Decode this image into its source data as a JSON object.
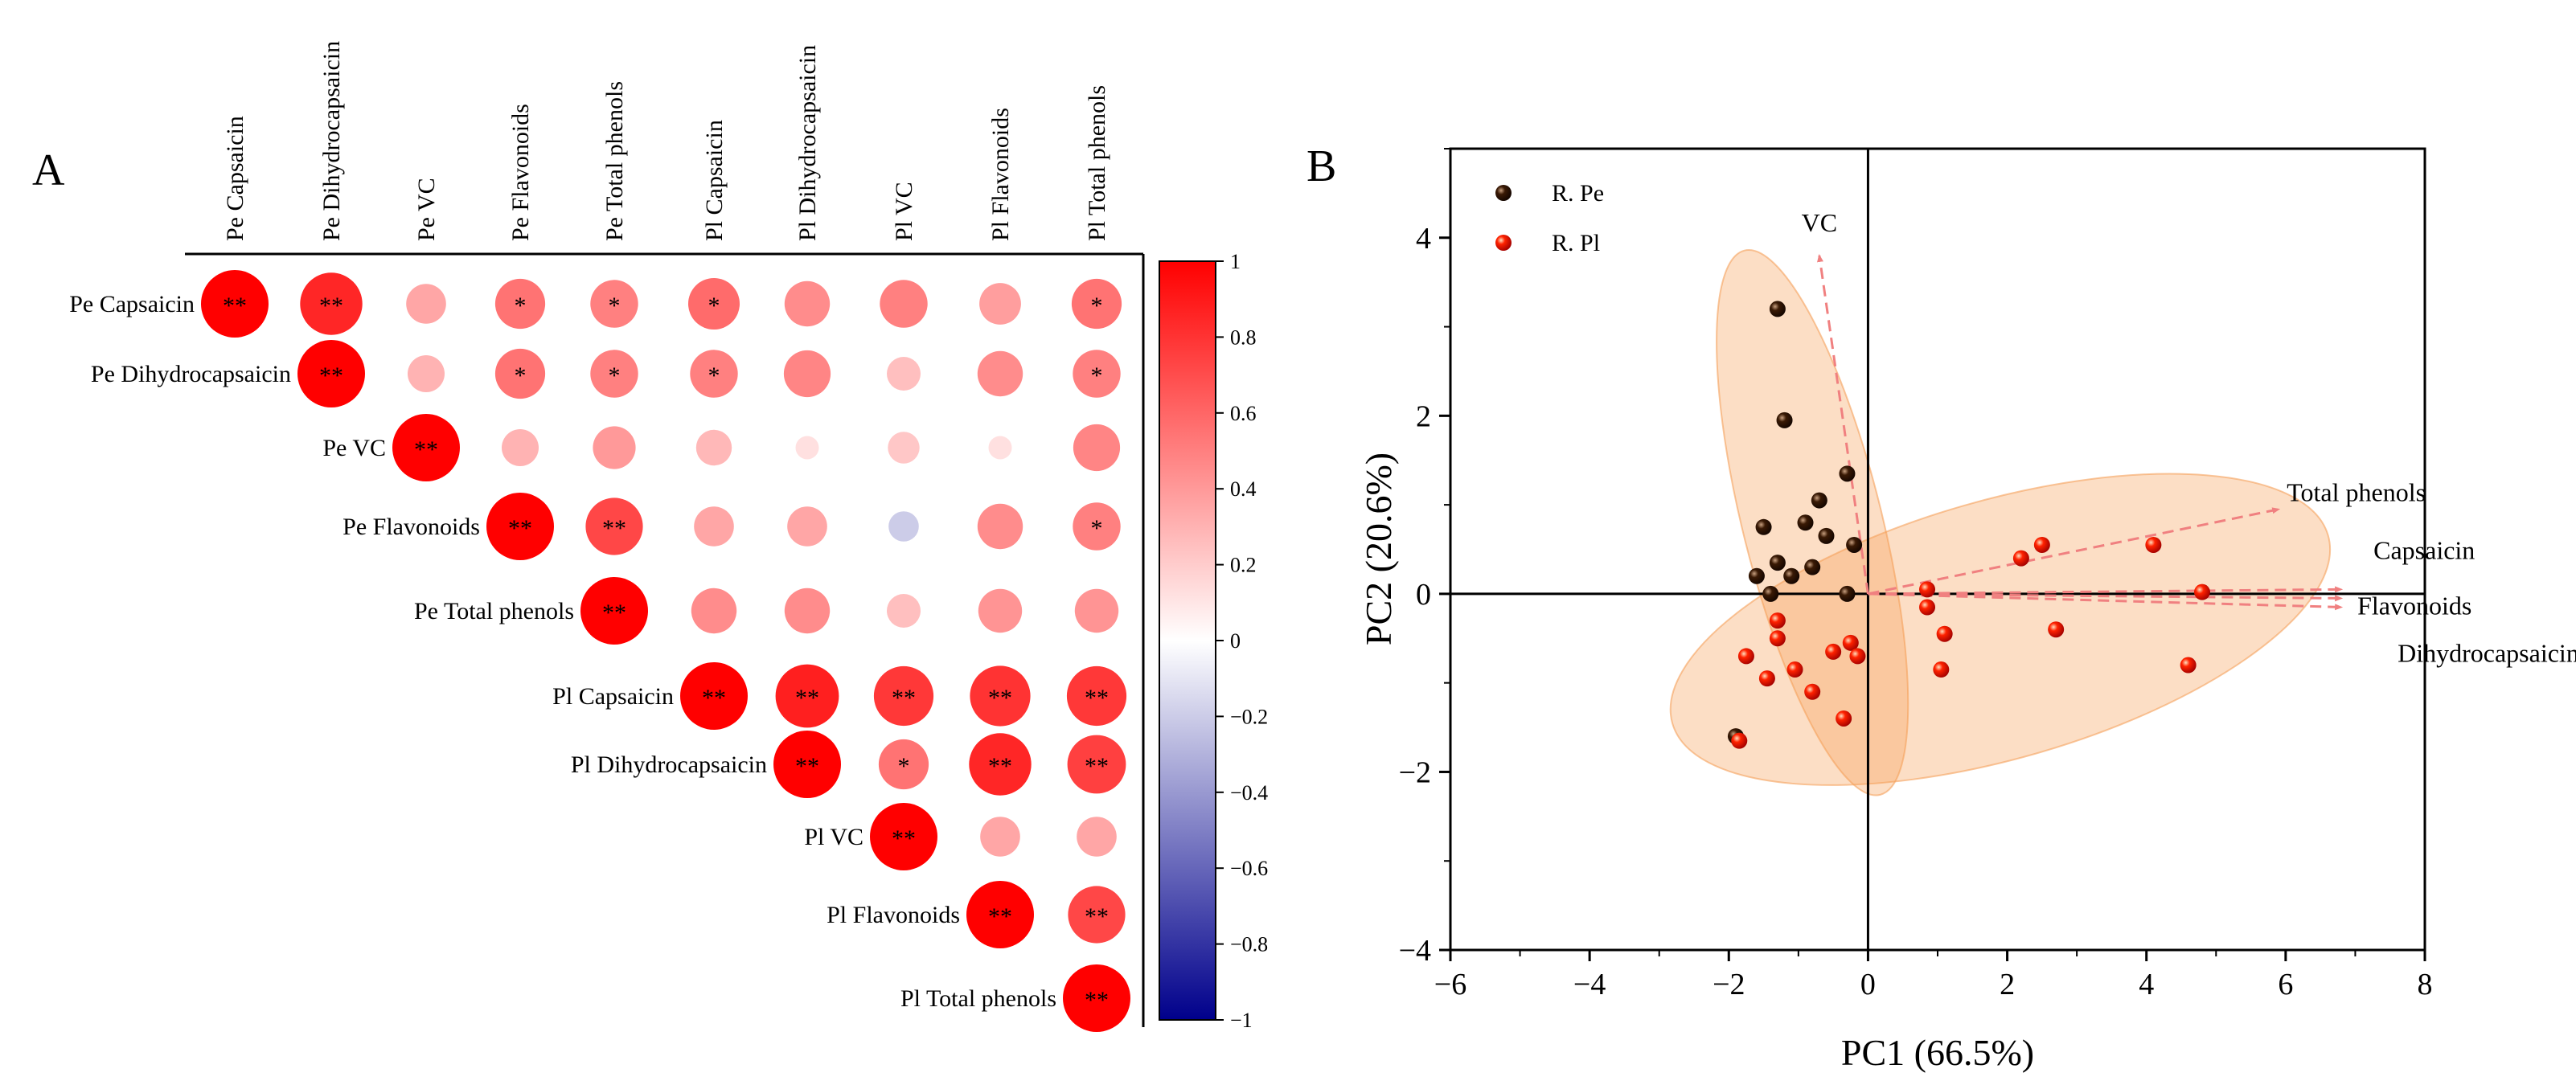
{
  "chart_data": [
    {
      "type": "heatmap",
      "panel_label": "A",
      "variables": [
        "Pe Capsaicin",
        "Pe Dihydrocapsaicin",
        "Pe VC",
        "Pe Flavonoids",
        "Pe Total phenols",
        "Pl Capsaicin",
        "Pl Dihydrocapsaicin",
        "Pl VC",
        "Pl Flavonoids",
        "Pl Total phenols"
      ],
      "matrix": [
        [
          1.0,
          0.85,
          0.35,
          0.55,
          0.5,
          0.58,
          0.45,
          0.5,
          0.38,
          0.55
        ],
        [
          null,
          1.0,
          0.3,
          0.55,
          0.5,
          0.5,
          0.48,
          0.25,
          0.45,
          0.5
        ],
        [
          null,
          null,
          1.0,
          0.3,
          0.4,
          0.28,
          0.12,
          0.22,
          0.12,
          0.48
        ],
        [
          null,
          null,
          null,
          1.0,
          0.72,
          0.35,
          0.35,
          -0.2,
          0.45,
          0.5
        ],
        [
          null,
          null,
          null,
          null,
          1.0,
          0.45,
          0.45,
          0.25,
          0.42,
          0.42
        ],
        [
          null,
          null,
          null,
          null,
          null,
          1.0,
          0.88,
          0.78,
          0.8,
          0.78
        ],
        [
          null,
          null,
          null,
          null,
          null,
          null,
          1.0,
          0.55,
          0.85,
          0.75
        ],
        [
          null,
          null,
          null,
          null,
          null,
          null,
          null,
          1.0,
          0.35,
          0.35
        ],
        [
          null,
          null,
          null,
          null,
          null,
          null,
          null,
          null,
          1.0,
          0.72
        ],
        [
          null,
          null,
          null,
          null,
          null,
          null,
          null,
          null,
          null,
          1.0
        ]
      ],
      "significance": [
        [
          "**",
          "**",
          "",
          "*",
          "*",
          "*",
          "",
          "",
          "",
          "*"
        ],
        [
          "",
          "**",
          "",
          "*",
          "*",
          "*",
          "",
          "",
          "",
          "*"
        ],
        [
          "",
          "",
          "**",
          "",
          "",
          "",
          "",
          "",
          "",
          ""
        ],
        [
          "",
          "",
          "",
          "**",
          "**",
          "",
          "",
          "",
          "",
          "*"
        ],
        [
          "",
          "",
          "",
          "",
          "**",
          "",
          "",
          "",
          "",
          ""
        ],
        [
          "",
          "",
          "",
          "",
          "",
          "**",
          "**",
          "**",
          "**",
          "**"
        ],
        [
          "",
          "",
          "",
          "",
          "",
          "",
          "**",
          "*",
          "**",
          "**"
        ],
        [
          "",
          "",
          "",
          "",
          "",
          "",
          "",
          "**",
          "",
          ""
        ],
        [
          "",
          "",
          "",
          "",
          "",
          "",
          "",
          "",
          "**",
          "**"
        ],
        [
          "",
          "",
          "",
          "",
          "",
          "",
          "",
          "",
          "",
          "**"
        ]
      ],
      "colorbar": {
        "range": [
          -1,
          1
        ],
        "ticks": [
          "1",
          "0.8",
          "0.6",
          "0.4",
          "0.2",
          "0",
          "−0.2",
          "−0.4",
          "−0.6",
          "−0.8",
          "−1"
        ],
        "colors": {
          "positive": "#ff0000",
          "neutral": "#ffffff",
          "negative": "#00008b"
        }
      }
    },
    {
      "type": "scatter",
      "panel_label": "B",
      "xlabel": "PC1 (66.5%)",
      "ylabel": "PC2 (20.6%)",
      "xlim": [
        -6,
        8
      ],
      "ylim": [
        -4,
        5
      ],
      "xticks": [
        "−6",
        "−4",
        "−2",
        "0",
        "2",
        "4",
        "6",
        "8"
      ],
      "yticks": [
        "−4",
        "−2",
        "0",
        "2",
        "4"
      ],
      "legend_position": "top-left",
      "series": [
        {
          "name": "R. Pe",
          "color": "#2b1200",
          "points": [
            [
              -1.3,
              3.2
            ],
            [
              -1.2,
              1.95
            ],
            [
              -0.3,
              1.35
            ],
            [
              -0.7,
              1.05
            ],
            [
              -1.5,
              0.75
            ],
            [
              -0.9,
              0.8
            ],
            [
              -0.6,
              0.65
            ],
            [
              -0.2,
              0.55
            ],
            [
              -1.3,
              0.35
            ],
            [
              -0.8,
              0.3
            ],
            [
              -1.6,
              0.2
            ],
            [
              -1.1,
              0.2
            ],
            [
              -0.3,
              0.0
            ],
            [
              -1.4,
              0.0
            ],
            [
              -1.9,
              -1.6
            ]
          ]
        },
        {
          "name": "R. Pl",
          "color": "#ee1100",
          "points": [
            [
              0.85,
              0.05
            ],
            [
              0.85,
              -0.15
            ],
            [
              1.1,
              -0.45
            ],
            [
              1.05,
              -0.85
            ],
            [
              2.2,
              0.4
            ],
            [
              2.5,
              0.55
            ],
            [
              2.7,
              -0.4
            ],
            [
              4.1,
              0.55
            ],
            [
              4.8,
              0.02
            ],
            [
              4.6,
              -0.8
            ],
            [
              -1.3,
              -0.5
            ],
            [
              -1.45,
              -0.95
            ],
            [
              -1.75,
              -0.7
            ],
            [
              -1.05,
              -0.85
            ],
            [
              -0.8,
              -1.1
            ],
            [
              -0.5,
              -0.65
            ],
            [
              -0.25,
              -0.55
            ],
            [
              -0.15,
              -0.7
            ],
            [
              -0.35,
              -1.4
            ],
            [
              -1.85,
              -1.65
            ],
            [
              -1.3,
              -0.3
            ]
          ]
        }
      ],
      "loadings": [
        {
          "label": "VC",
          "x": -0.7,
          "y": 3.8
        },
        {
          "label": "Total phenols",
          "x": 5.9,
          "y": 0.95
        },
        {
          "label": "Capsaicin",
          "x": 6.8,
          "y": 0.05
        },
        {
          "label": "Flavonoids",
          "x": 6.8,
          "y": -0.05
        },
        {
          "label": "Dihydrocapsaicin",
          "x": 6.8,
          "y": -0.15
        }
      ],
      "ellipses": [
        {
          "group": "R. Pe",
          "cx": -0.8,
          "cy": 0.8,
          "rx": 1.0,
          "ry": 3.15,
          "angle_deg": 14,
          "color": "#f5a05a"
        },
        {
          "group": "R. Pl",
          "cx": 1.9,
          "cy": -0.4,
          "rx": 4.9,
          "ry": 1.45,
          "angle_deg": 16,
          "color": "#f5a05a"
        }
      ]
    }
  ]
}
